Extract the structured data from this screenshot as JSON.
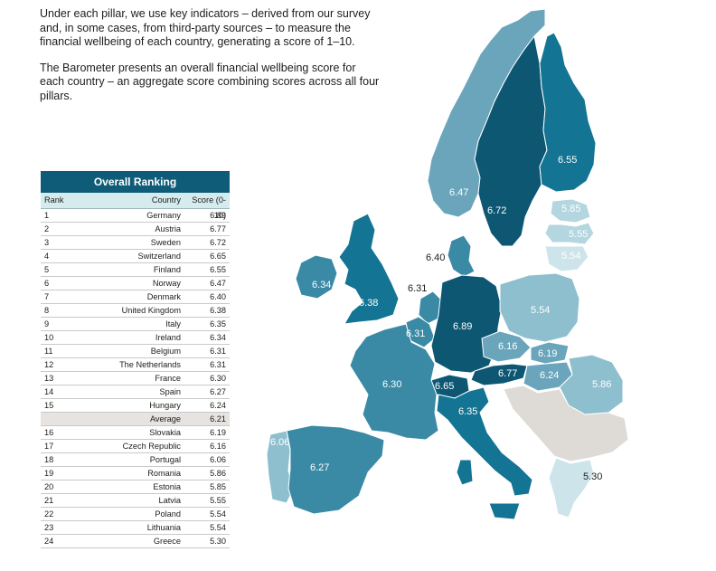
{
  "intro": {
    "paragraph1": "Under each pillar, we use key indicators – derived from our survey and, in some cases, from third-party sources – to measure the financial wellbeing of each country, generating a score of 1–10.",
    "paragraph2": "The Barometer presents an overall financial wellbeing score for each country – an aggregate score combining scores across all four pillars."
  },
  "table": {
    "title": "Overall Ranking",
    "headers": {
      "rank": "Rank",
      "country": "Country",
      "score": "Score (0-10)"
    },
    "rows": [
      {
        "rank": "1",
        "country": "Germany",
        "score": "6.89"
      },
      {
        "rank": "2",
        "country": "Austria",
        "score": "6.77"
      },
      {
        "rank": "3",
        "country": "Sweden",
        "score": "6.72"
      },
      {
        "rank": "4",
        "country": "Switzerland",
        "score": "6.65"
      },
      {
        "rank": "5",
        "country": "Finland",
        "score": "6.55"
      },
      {
        "rank": "6",
        "country": "Norway",
        "score": "6.47"
      },
      {
        "rank": "7",
        "country": "Denmark",
        "score": "6.40"
      },
      {
        "rank": "8",
        "country": "United Kingdom",
        "score": "6.38"
      },
      {
        "rank": "9",
        "country": "Italy",
        "score": "6.35"
      },
      {
        "rank": "10",
        "country": "Ireland",
        "score": "6.34"
      },
      {
        "rank": "11",
        "country": "Belgium",
        "score": "6.31"
      },
      {
        "rank": "12",
        "country": "The Netherlands",
        "score": "6.31"
      },
      {
        "rank": "13",
        "country": "France",
        "score": "6.30"
      },
      {
        "rank": "14",
        "country": "Spain",
        "score": "6.27"
      },
      {
        "rank": "15",
        "country": "Hungary",
        "score": "6.24"
      },
      {
        "rank": "",
        "country": "Average",
        "score": "6.21",
        "avg": true
      },
      {
        "rank": "16",
        "country": "Slovakia",
        "score": "6.19"
      },
      {
        "rank": "17",
        "country": "Czech Republic",
        "score": "6.16"
      },
      {
        "rank": "18",
        "country": "Portugal",
        "score": "6.06"
      },
      {
        "rank": "19",
        "country": "Romania",
        "score": "5.86"
      },
      {
        "rank": "20",
        "country": "Estonia",
        "score": "5.85"
      },
      {
        "rank": "21",
        "country": "Latvia",
        "score": "5.55"
      },
      {
        "rank": "22",
        "country": "Poland",
        "score": "5.54"
      },
      {
        "rank": "23",
        "country": "Lithuania",
        "score": "5.54"
      },
      {
        "rank": "24",
        "country": "Greece",
        "score": "5.30"
      }
    ]
  },
  "map": {
    "colors": {
      "darkest": "#0d5773",
      "dark": "#137493",
      "mid": "#3a8aa6",
      "medium": "#6aa5bb",
      "light": "#8ebfcf",
      "lighter": "#b3d6e0",
      "lightest": "#cde4ea",
      "grey": "#dedad6",
      "border": "#ffffff"
    },
    "labels": {
      "finland": "6.55",
      "norway": "6.47",
      "sweden": "6.72",
      "estonia": "5.85",
      "latvia": "5.55",
      "lithuania": "5.54",
      "denmark": "6.40",
      "ireland": "6.34",
      "uk": "6.38",
      "netherlands": "6.31",
      "belgium": "6.31",
      "germany": "6.89",
      "poland": "5.54",
      "czech": "6.16",
      "slovakia": "6.19",
      "austria": "6.77",
      "hungary": "6.24",
      "romania": "5.86",
      "switzerland": "6.65",
      "france": "6.30",
      "italy": "6.35",
      "portugal": "6.06",
      "spain": "6.27",
      "greece": "5.30"
    }
  }
}
